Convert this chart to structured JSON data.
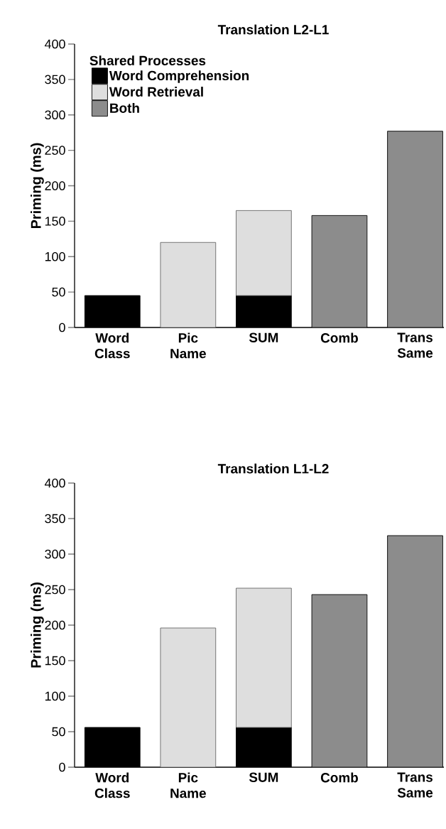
{
  "chart_data": [
    {
      "type": "bar",
      "title": "Translation L2-L1",
      "ylabel": "Priming (ms)",
      "categories": [
        "Word Class",
        "Pic Name",
        "SUM",
        "Comb",
        "Trans Same"
      ],
      "stacked": true,
      "ylim": [
        0,
        400
      ],
      "yticks": [
        0,
        50,
        100,
        150,
        200,
        250,
        300,
        350,
        400
      ],
      "grid": false,
      "legend": "top left",
      "legend_title": "Shared Processes",
      "series": [
        {
          "name": "Word Comprehension",
          "color": "#000000",
          "values": [
            45,
            null,
            45,
            null,
            null
          ]
        },
        {
          "name": "Word Retrieval",
          "color": "#dedede",
          "values": [
            null,
            120,
            120,
            null,
            null
          ]
        },
        {
          "name": "Both",
          "color": "#8c8c8c",
          "values": [
            null,
            null,
            null,
            158,
            277
          ]
        }
      ]
    },
    {
      "type": "bar",
      "title": "Translation L1-L2",
      "ylabel": "Priming (ms)",
      "categories": [
        "Word Class",
        "Pic Name",
        "SUM",
        "Comb",
        "Trans Same"
      ],
      "stacked": true,
      "ylim": [
        0,
        400
      ],
      "yticks": [
        0,
        50,
        100,
        150,
        200,
        250,
        300,
        350,
        400
      ],
      "grid": false,
      "legend": false,
      "series": [
        {
          "color": "#000000",
          "values": [
            56,
            null,
            56,
            null,
            null
          ]
        },
        {
          "color": "#dedede",
          "values": [
            null,
            196,
            196,
            null,
            null
          ]
        },
        {
          "color": "#8c8c8c",
          "values": [
            null,
            null,
            null,
            243,
            326
          ]
        }
      ]
    }
  ]
}
